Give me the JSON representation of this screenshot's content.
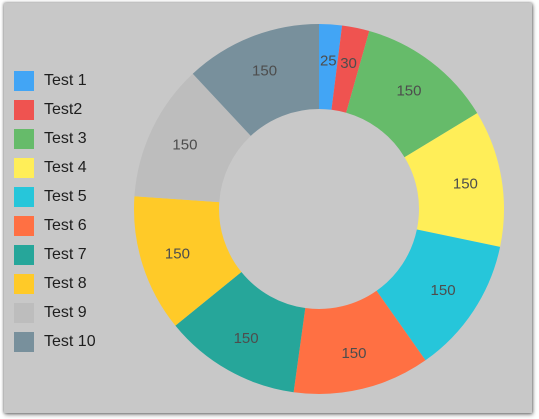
{
  "chart_data": {
    "type": "pie",
    "donut": true,
    "categories": [
      "Test 1",
      "Test2",
      "Test 3",
      "Test 4",
      "Test 5",
      "Test 6",
      "Test 7",
      "Test 8",
      "Test 9",
      "Test 10"
    ],
    "values": [
      25,
      30,
      150,
      150,
      150,
      150,
      150,
      150,
      150,
      150
    ],
    "data_labels": [
      "25",
      "30",
      "150",
      "150",
      "150",
      "150",
      "150",
      "150",
      "150",
      "150"
    ],
    "colors": [
      "#42a5f5",
      "#ef5350",
      "#66bb6a",
      "#ffee58",
      "#26c6da",
      "#ff7043",
      "#26a69a",
      "#ffca28",
      "#bdbdbd",
      "#78909c"
    ],
    "legend_position": "left",
    "background": "#c8c8c8"
  }
}
